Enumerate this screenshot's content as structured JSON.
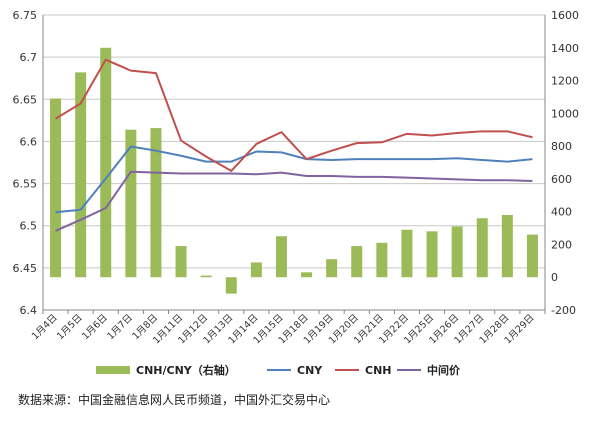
{
  "chart_data": {
    "type": "bar",
    "categories": [
      "1月4日",
      "1月5日",
      "1月6日",
      "1月7日",
      "1月8日",
      "1月11日",
      "1月12日",
      "1月13日",
      "1月14日",
      "1月15日",
      "1月18日",
      "1月19日",
      "1月20日",
      "1月21日",
      "1月22日",
      "1月25日",
      "1月26日",
      "1月27日",
      "1月28日",
      "1月29日"
    ],
    "left_axis": {
      "ylim": [
        6.4,
        6.75
      ],
      "ticks": [
        "6.4",
        "6.45",
        "6.5",
        "6.55",
        "6.6",
        "6.65",
        "6.7",
        "6.75"
      ]
    },
    "right_axis": {
      "ylim": [
        -200,
        1600
      ],
      "ticks": [
        "-200",
        "0",
        "200",
        "400",
        "600",
        "800",
        "1000",
        "1200",
        "1400",
        "1600"
      ]
    },
    "grid": "horizontal",
    "legend_position": "bottom",
    "series": [
      {
        "name": "CNH/CNY（右轴）",
        "type": "bar",
        "axis": "right",
        "color": "#9bbb59",
        "values": [
          1090,
          1250,
          1400,
          900,
          910,
          190,
          10,
          -100,
          90,
          250,
          30,
          110,
          190,
          210,
          290,
          280,
          310,
          360,
          380,
          260
        ]
      },
      {
        "name": "CNY",
        "type": "line",
        "axis": "left",
        "color": "#4f81bd",
        "values": [
          6.516,
          6.519,
          6.556,
          6.594,
          6.589,
          6.583,
          6.576,
          6.576,
          6.588,
          6.587,
          6.579,
          6.578,
          6.579,
          6.579,
          6.579,
          6.579,
          6.58,
          6.578,
          6.576,
          6.579
        ]
      },
      {
        "name": "CNH",
        "type": "line",
        "axis": "left",
        "color": "#c0504d",
        "values": [
          6.627,
          6.645,
          6.697,
          6.684,
          6.681,
          6.601,
          6.582,
          6.565,
          6.597,
          6.611,
          6.579,
          6.589,
          6.598,
          6.599,
          6.609,
          6.607,
          6.61,
          6.612,
          6.612,
          6.605
        ]
      },
      {
        "name": "中间价",
        "type": "line",
        "axis": "left",
        "color": "#8064a2",
        "values": [
          6.494,
          6.507,
          6.521,
          6.564,
          6.563,
          6.562,
          6.562,
          6.562,
          6.561,
          6.563,
          6.559,
          6.559,
          6.558,
          6.558,
          6.557,
          6.556,
          6.555,
          6.554,
          6.554,
          6.553
        ]
      }
    ]
  },
  "source_text": "数据来源：中国金融信息网人民币频道，中国外汇交易中心"
}
